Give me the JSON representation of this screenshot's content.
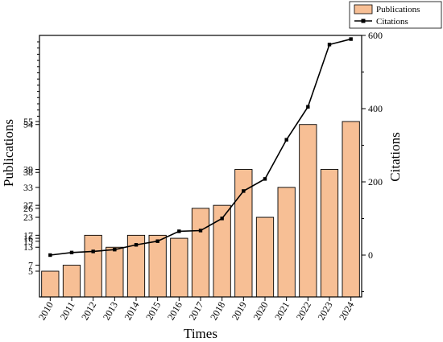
{
  "chart_data": {
    "type": "bar",
    "title": "",
    "xlabel": "Times",
    "ylabel": "Publications",
    "y2label": "Citations",
    "categories": [
      "2010",
      "2011",
      "2012",
      "2013",
      "2014",
      "2015",
      "2016",
      "2017",
      "2018",
      "2019",
      "2020",
      "2021",
      "2022",
      "2023",
      "2024"
    ],
    "y_tick_labels": [
      "5",
      "7",
      "13",
      "15",
      "16",
      "17",
      "23",
      "26",
      "27",
      "33",
      "38",
      "39",
      "54",
      "55"
    ],
    "y2_ticks": [
      0,
      200,
      400,
      600
    ],
    "y2lim": [
      -100,
      600
    ],
    "legend_position": "top-right",
    "bar_color": "#f7bf95",
    "line_color": "#000000",
    "series": [
      {
        "name": "Publications",
        "type": "bar",
        "axis": "left",
        "values": [
          5,
          7,
          17,
          13,
          17,
          17,
          16,
          26,
          27,
          39,
          23,
          33,
          54,
          39,
          55
        ]
      },
      {
        "name": "Citations",
        "type": "line",
        "axis": "right",
        "values": [
          0,
          7,
          10,
          15,
          28,
          38,
          65,
          67,
          100,
          175,
          208,
          315,
          405,
          575,
          590
        ]
      }
    ]
  }
}
